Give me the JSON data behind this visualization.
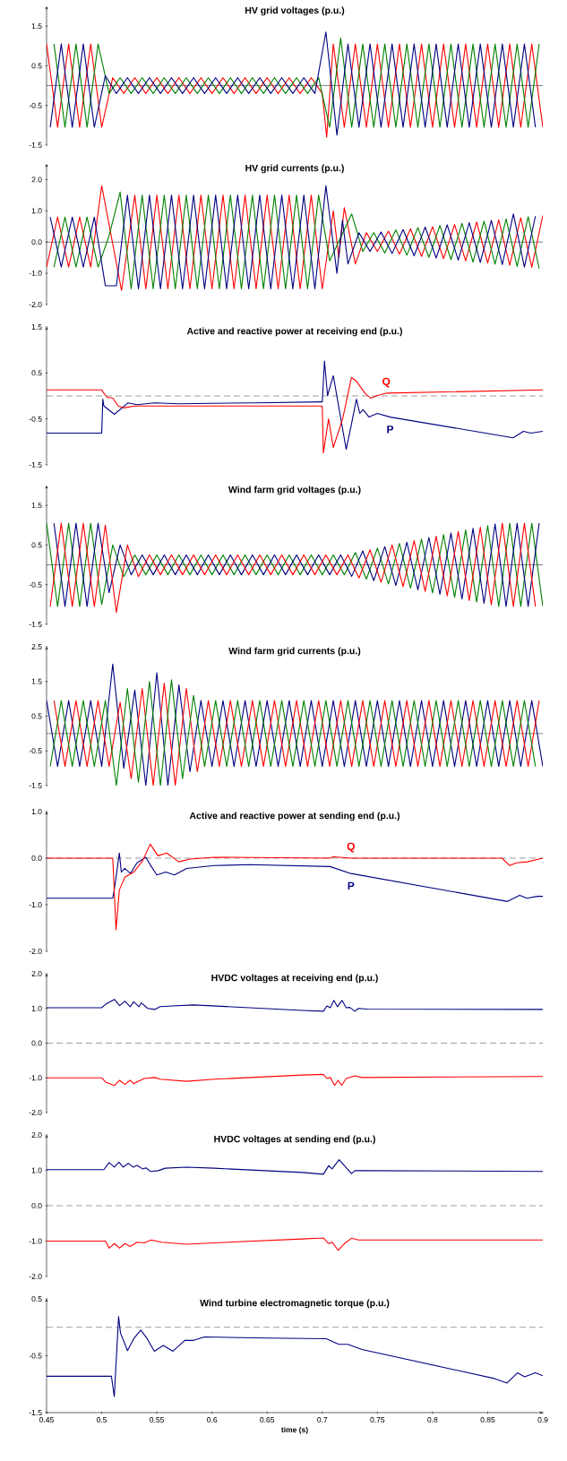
{
  "chart_data": [
    {
      "type": "line",
      "title": "HV grid voltages (p.u.)",
      "xlim": [
        0.45,
        0.9
      ],
      "ylim": [
        -1.5,
        2
      ],
      "yticks": [
        -1.5,
        -0.5,
        0.5,
        1.5
      ],
      "tick_labels": "y",
      "ref_lines": [
        {
          "axis": "y",
          "value": 0,
          "line_style": "solid",
          "color": "#000000"
        }
      ],
      "series": [
        {
          "color": "#ff0000",
          "x": [
            0.45,
            0.46,
            0.47,
            0.48,
            0.49,
            0.5,
            0.51,
            0.52,
            0.53,
            0.54,
            0.55,
            0.56,
            0.57,
            0.58,
            0.59,
            0.6,
            0.61,
            0.62,
            0.63,
            0.64,
            0.65,
            0.66,
            0.67,
            0.68,
            0.69,
            0.7,
            0.704,
            0.71,
            0.72,
            0.73,
            0.74,
            0.75,
            0.76,
            0.77,
            0.78,
            0.79,
            0.8,
            0.81,
            0.82,
            0.83,
            0.84,
            0.85,
            0.86,
            0.87,
            0.88,
            0.89,
            0.9
          ],
          "values": [
            1.05,
            -1.05,
            1.05,
            -1.05,
            1.05,
            -1.05,
            0.2,
            -0.2,
            0.2,
            -0.2,
            0.2,
            -0.2,
            0.2,
            -0.2,
            0.2,
            -0.2,
            0.2,
            -0.2,
            0.2,
            -0.2,
            0.2,
            -0.2,
            0.2,
            -0.2,
            0.2,
            -0.2,
            -1.3,
            1.05,
            -1.05,
            1.05,
            -1.05,
            1.05,
            -1.05,
            1.05,
            -1.05,
            1.05,
            -1.05,
            1.05,
            -1.05,
            1.05,
            -1.05,
            1.05,
            -1.05,
            1.05,
            -1.05,
            1.05,
            -1.05
          ]
        },
        {
          "color": "#008000",
          "x": [
            0.4567,
            0.4667,
            0.4767,
            0.4867,
            0.4967,
            0.5067,
            0.5167,
            0.5267,
            0.5367,
            0.5467,
            0.5567,
            0.5667,
            0.5767,
            0.5867,
            0.5967,
            0.6067,
            0.6167,
            0.6267,
            0.6367,
            0.6467,
            0.6567,
            0.6667,
            0.6767,
            0.6867,
            0.6967,
            0.7067,
            0.7167,
            0.7267,
            0.7367,
            0.7467,
            0.7567,
            0.7667,
            0.7767,
            0.7867,
            0.7967,
            0.8067,
            0.8167,
            0.8267,
            0.8367,
            0.8467,
            0.8567,
            0.8667,
            0.8767,
            0.8867,
            0.8967
          ],
          "values": [
            1.05,
            -1.05,
            1.05,
            -1.05,
            1.05,
            -0.2,
            0.2,
            -0.2,
            0.2,
            -0.2,
            0.2,
            -0.2,
            0.2,
            -0.2,
            0.2,
            -0.2,
            0.2,
            -0.2,
            0.2,
            -0.2,
            0.2,
            -0.2,
            0.2,
            -0.2,
            0.2,
            -1.05,
            1.2,
            -1.05,
            1.05,
            -1.05,
            1.05,
            -1.05,
            1.05,
            -1.05,
            1.05,
            -1.05,
            1.05,
            -1.05,
            1.05,
            -1.05,
            1.05,
            -1.05,
            1.05,
            -1.05,
            1.05
          ]
        },
        {
          "color": "#000080",
          "x": [
            0.4533,
            0.4633,
            0.4733,
            0.4833,
            0.4933,
            0.5033,
            0.5133,
            0.5233,
            0.5333,
            0.5433,
            0.5533,
            0.5633,
            0.5733,
            0.5833,
            0.5933,
            0.6033,
            0.6133,
            0.6233,
            0.6333,
            0.6433,
            0.6533,
            0.6633,
            0.6733,
            0.6833,
            0.6933,
            0.7033,
            0.7133,
            0.7233,
            0.7333,
            0.7433,
            0.7533,
            0.7633,
            0.7733,
            0.7833,
            0.7933,
            0.8033,
            0.8133,
            0.8233,
            0.8333,
            0.8433,
            0.8533,
            0.8633,
            0.8733,
            0.8833,
            0.8933
          ],
          "values": [
            -1.05,
            1.05,
            -1.05,
            1.05,
            -1.05,
            0.25,
            -0.2,
            0.2,
            -0.2,
            0.2,
            -0.2,
            0.2,
            -0.2,
            0.2,
            -0.2,
            0.2,
            -0.2,
            0.2,
            -0.2,
            0.2,
            -0.2,
            0.2,
            -0.2,
            0.2,
            -0.2,
            1.35,
            -1.25,
            1.05,
            -1.05,
            1.05,
            -1.05,
            1.05,
            -1.05,
            1.05,
            -1.05,
            1.05,
            -1.05,
            1.05,
            -1.05,
            1.05,
            -1.05,
            1.05,
            -1.05,
            1.05,
            -1.05
          ]
        }
      ]
    },
    {
      "type": "line",
      "title": "HV grid currents (p.u.)",
      "xlim": [
        0.45,
        0.9
      ],
      "ylim": [
        -2,
        2.5
      ],
      "yticks": [
        {
          "value": -2,
          "label": "-2.0"
        },
        {
          "value": -1,
          "label": "-1.0"
        },
        {
          "value": 0,
          "label": "0.0"
        },
        {
          "value": 1,
          "label": "1.0"
        },
        {
          "value": 2,
          "label": "2.0"
        }
      ],
      "tick_labels": "y",
      "ref_lines": [
        {
          "axis": "y",
          "value": 0,
          "line_style": "solid",
          "color": "#000000"
        }
      ],
      "series": [
        {
          "color": "#ff0000",
          "x": [
            0.45,
            0.46,
            0.47,
            0.48,
            0.49,
            0.5,
            0.518,
            0.53,
            0.54,
            0.55,
            0.56,
            0.57,
            0.58,
            0.59,
            0.6,
            0.61,
            0.62,
            0.63,
            0.64,
            0.65,
            0.66,
            0.67,
            0.68,
            0.69,
            0.7,
            0.71,
            0.715,
            0.72,
            0.73,
            0.74,
            0.75,
            0.76,
            0.77,
            0.78,
            0.79,
            0.8,
            0.81,
            0.82,
            0.83,
            0.84,
            0.85,
            0.86,
            0.87,
            0.88,
            0.89,
            0.9
          ],
          "values": [
            -0.8,
            0.8,
            -0.8,
            0.8,
            -0.8,
            1.8,
            -1.55,
            1.5,
            -1.5,
            1.5,
            -1.5,
            1.5,
            -1.5,
            1.5,
            -1.5,
            1.5,
            -1.5,
            1.5,
            -1.5,
            1.5,
            -1.5,
            1.5,
            -1.5,
            1.5,
            -1.5,
            1.0,
            -0.5,
            1.1,
            -0.7,
            0.3,
            -0.3,
            0.35,
            -0.39,
            0.42,
            -0.46,
            0.49,
            -0.53,
            0.56,
            -0.6,
            0.64,
            -0.67,
            0.71,
            -0.74,
            0.78,
            -0.81,
            0.85
          ]
        },
        {
          "color": "#008000",
          "x": [
            0.4567,
            0.4667,
            0.4767,
            0.4867,
            0.4967,
            0.5067,
            0.5167,
            0.5267,
            0.5367,
            0.5467,
            0.5567,
            0.5667,
            0.5767,
            0.5867,
            0.5967,
            0.6067,
            0.6167,
            0.6267,
            0.6367,
            0.6467,
            0.6567,
            0.6667,
            0.6767,
            0.6867,
            0.6967,
            0.7067,
            0.7267,
            0.7367,
            0.7467,
            0.7567,
            0.7667,
            0.7767,
            0.7867,
            0.7967,
            0.8067,
            0.8167,
            0.8267,
            0.8367,
            0.8467,
            0.8567,
            0.8667,
            0.8767,
            0.8867,
            0.8967
          ],
          "values": [
            -0.8,
            0.8,
            -0.8,
            0.8,
            -0.8,
            0.2,
            1.6,
            -1.5,
            1.5,
            -1.5,
            1.5,
            -1.5,
            1.5,
            -1.5,
            1.5,
            -1.5,
            1.5,
            -1.5,
            1.5,
            -1.5,
            1.5,
            -1.5,
            1.5,
            -1.5,
            1.5,
            -0.6,
            0.9,
            -0.3,
            0.3,
            -0.35,
            0.39,
            -0.42,
            0.46,
            -0.49,
            0.53,
            -0.56,
            0.6,
            -0.64,
            0.67,
            -0.71,
            0.74,
            -0.78,
            0.81,
            -0.85
          ]
        },
        {
          "color": "#000080",
          "x": [
            0.4533,
            0.4633,
            0.4733,
            0.4833,
            0.4933,
            0.5033,
            0.5133,
            0.5233,
            0.5333,
            0.5433,
            0.5533,
            0.5633,
            0.5733,
            0.5833,
            0.5933,
            0.6033,
            0.6133,
            0.6233,
            0.6333,
            0.6433,
            0.6533,
            0.6633,
            0.6733,
            0.6833,
            0.6933,
            0.7033,
            0.7133,
            0.7183,
            0.7233,
            0.7333,
            0.7433,
            0.7533,
            0.7633,
            0.7733,
            0.7833,
            0.7933,
            0.8033,
            0.8133,
            0.8233,
            0.8333,
            0.8433,
            0.8533,
            0.8633,
            0.8733,
            0.8833,
            0.8933
          ],
          "values": [
            0.8,
            -0.8,
            0.8,
            -0.8,
            0.8,
            -1.4,
            -1.4,
            1.5,
            -1.5,
            1.5,
            -1.5,
            1.5,
            -1.5,
            1.5,
            -1.5,
            1.5,
            -1.5,
            1.5,
            -1.5,
            1.5,
            -1.5,
            1.5,
            -1.5,
            1.5,
            -1.5,
            1.8,
            -1.0,
            0.7,
            -0.7,
            0.3,
            -0.3,
            0.32,
            -0.37,
            0.4,
            -0.44,
            0.48,
            -0.51,
            0.55,
            -0.58,
            0.62,
            -0.65,
            0.69,
            -0.72,
            0.9,
            -0.8,
            0.83
          ]
        }
      ]
    },
    {
      "type": "line",
      "title": "Active and reactive power at receiving end (p.u.)",
      "xlim": [
        0.45,
        0.9
      ],
      "ylim": [
        -1.5,
        1.5
      ],
      "yticks": [
        -1.5,
        -0.5,
        0.5,
        1.5
      ],
      "tick_labels": "y",
      "ref_lines": [
        {
          "axis": "y",
          "value": 0,
          "line_style": "dashed",
          "color": "#404040"
        }
      ],
      "series": [
        {
          "name": "P",
          "color": "#000080",
          "x": [
            0.45,
            0.5,
            0.501,
            0.502,
            0.5115,
            0.524,
            0.532,
            0.548,
            0.57,
            0.64,
            0.699,
            0.7,
            0.702,
            0.7048,
            0.71,
            0.7217,
            0.7265,
            0.731,
            0.734,
            0.737,
            0.7424,
            0.75,
            0.7615,
            0.873,
            0.8825,
            0.889,
            0.9
          ],
          "values": [
            -0.81,
            -0.81,
            -0.07,
            -0.22,
            -0.4,
            -0.15,
            -0.19,
            -0.15,
            -0.17,
            -0.15,
            -0.13,
            -0.13,
            0.76,
            0.01,
            0.44,
            -1.16,
            -0.61,
            -0.07,
            -0.38,
            -0.3,
            -0.46,
            -0.38,
            -0.46,
            -0.91,
            -0.77,
            -0.81,
            -0.77
          ]
        },
        {
          "name": "Q",
          "color": "#ff0000",
          "x": [
            0.45,
            0.5,
            0.501,
            0.505,
            0.51,
            0.515,
            0.52,
            0.53,
            0.7,
            0.701,
            0.7057,
            0.71,
            0.7185,
            0.7265,
            0.731,
            0.739,
            0.744,
            0.75,
            0.758,
            0.9
          ],
          "values": [
            0.13,
            0.13,
            0.09,
            -0.03,
            -0.05,
            -0.22,
            -0.26,
            -0.22,
            -0.22,
            -1.24,
            -0.5,
            -1.12,
            -0.5,
            0.4,
            0.32,
            0.05,
            -0.05,
            0.01,
            0.06,
            0.13
          ]
        }
      ]
    },
    {
      "type": "line",
      "title": "Wind farm grid voltages (p.u.)",
      "xlim": [
        0.45,
        0.9
      ],
      "ylim": [
        -1.5,
        2
      ],
      "yticks": [
        -1.5,
        -0.5,
        0.5,
        1.5
      ],
      "tick_labels": "y",
      "ref_lines": [
        {
          "axis": "y",
          "value": 0,
          "line_style": "solid",
          "color": "#000000"
        }
      ],
      "series": [
        {
          "color": "#008000",
          "x": [
            0.45,
            0.46,
            0.47,
            0.48,
            0.49,
            0.5,
            0.51,
            0.52,
            0.53,
            0.54,
            0.55,
            0.56,
            0.57,
            0.58,
            0.59,
            0.6,
            0.61,
            0.62,
            0.63,
            0.64,
            0.65,
            0.66,
            0.67,
            0.68,
            0.69,
            0.7,
            0.71,
            0.72,
            0.73,
            0.74,
            0.75,
            0.76,
            0.77,
            0.78,
            0.79,
            0.8,
            0.81,
            0.82,
            0.83,
            0.84,
            0.85,
            0.86,
            0.87,
            0.88,
            0.89,
            0.9
          ],
          "values": [
            1.05,
            -1.05,
            1.05,
            -1.05,
            1.05,
            -1.0,
            0.5,
            -0.3,
            0.25,
            -0.25,
            0.25,
            -0.25,
            0.25,
            -0.25,
            0.25,
            -0.25,
            0.25,
            -0.25,
            0.25,
            -0.25,
            0.25,
            -0.25,
            0.25,
            -0.25,
            0.25,
            -0.25,
            0.25,
            -0.25,
            0.31,
            -0.36,
            0.42,
            -0.48,
            0.54,
            -0.59,
            0.65,
            -0.71,
            0.76,
            -0.82,
            0.88,
            -0.94,
            0.99,
            -1.05,
            1.05,
            -1.05,
            1.05,
            -1.05
          ]
        },
        {
          "color": "#000080",
          "x": [
            0.4567,
            0.4667,
            0.4767,
            0.4867,
            0.4967,
            0.5067,
            0.5167,
            0.5267,
            0.5367,
            0.5467,
            0.5567,
            0.5667,
            0.5767,
            0.5867,
            0.5967,
            0.6067,
            0.6167,
            0.6267,
            0.6367,
            0.6467,
            0.6567,
            0.6667,
            0.6767,
            0.6867,
            0.6967,
            0.7067,
            0.7167,
            0.7267,
            0.7367,
            0.7467,
            0.7567,
            0.7667,
            0.7767,
            0.7867,
            0.7967,
            0.8067,
            0.8167,
            0.8267,
            0.8367,
            0.8467,
            0.8567,
            0.8667,
            0.8767,
            0.8867,
            0.8967
          ],
          "values": [
            1.05,
            -1.05,
            1.05,
            -1.05,
            1.05,
            -0.7,
            0.5,
            -0.25,
            0.25,
            -0.25,
            0.25,
            -0.25,
            0.25,
            -0.25,
            0.25,
            -0.25,
            0.25,
            -0.25,
            0.25,
            -0.25,
            0.25,
            -0.25,
            0.25,
            -0.25,
            0.25,
            -0.25,
            0.25,
            -0.29,
            0.35,
            -0.4,
            0.46,
            -0.52,
            0.57,
            -0.63,
            0.69,
            -0.74,
            0.8,
            -0.86,
            0.92,
            -0.97,
            1.03,
            -1.05,
            1.05,
            -1.05,
            1.05
          ]
        },
        {
          "color": "#ff0000",
          "x": [
            0.4533,
            0.4633,
            0.4733,
            0.4833,
            0.4933,
            0.5033,
            0.5133,
            0.5233,
            0.5333,
            0.5433,
            0.5533,
            0.5633,
            0.5733,
            0.5833,
            0.5933,
            0.6033,
            0.6133,
            0.6233,
            0.6333,
            0.6433,
            0.6533,
            0.6633,
            0.6733,
            0.6833,
            0.6933,
            0.7033,
            0.7133,
            0.7233,
            0.7333,
            0.7433,
            0.7533,
            0.7633,
            0.7733,
            0.7833,
            0.7933,
            0.8033,
            0.8133,
            0.8233,
            0.8333,
            0.8433,
            0.8533,
            0.8633,
            0.8733,
            0.8833,
            0.8933
          ],
          "values": [
            -1.05,
            1.05,
            -1.05,
            1.05,
            -1.05,
            1.0,
            -1.2,
            0.5,
            -0.3,
            0.25,
            -0.25,
            0.25,
            -0.25,
            0.25,
            -0.25,
            0.25,
            -0.25,
            0.25,
            -0.25,
            0.25,
            -0.25,
            0.25,
            -0.25,
            0.25,
            -0.25,
            0.25,
            -0.25,
            0.25,
            -0.33,
            0.38,
            -0.44,
            0.5,
            -0.55,
            0.61,
            -0.67,
            0.72,
            -0.78,
            0.84,
            -0.9,
            0.95,
            -1.01,
            1.05,
            -1.05,
            1.05,
            -1.05
          ]
        }
      ]
    },
    {
      "type": "line",
      "title": "Wind farm grid currents (p.u.)",
      "xlim": [
        0.45,
        0.9
      ],
      "ylim": [
        -1.5,
        2.5
      ],
      "yticks": [
        -1.5,
        -0.5,
        0.5,
        1.5,
        2.5
      ],
      "tick_labels": "y",
      "ref_lines": [
        {
          "axis": "y",
          "value": 0,
          "line_style": "solid",
          "color": "#000000"
        }
      ],
      "series": [
        {
          "color": "#000080",
          "x": [
            0.45,
            0.46,
            0.47,
            0.48,
            0.49,
            0.5,
            0.51,
            0.52,
            0.53,
            0.54,
            0.55,
            0.56,
            0.57,
            0.58,
            0.59,
            0.6,
            0.61,
            0.62,
            0.63,
            0.64,
            0.65,
            0.66,
            0.67,
            0.68,
            0.69,
            0.7,
            0.71,
            0.72,
            0.73,
            0.74,
            0.75,
            0.76,
            0.77,
            0.78,
            0.79,
            0.8,
            0.81,
            0.82,
            0.83,
            0.84,
            0.85,
            0.86,
            0.87,
            0.88,
            0.89,
            0.9
          ],
          "values": [
            0.95,
            -0.95,
            0.95,
            -0.95,
            0.95,
            -0.95,
            2.0,
            -1.0,
            1.25,
            -1.5,
            1.75,
            -1.5,
            1.4,
            -1.1,
            0.95,
            -0.95,
            0.95,
            -0.95,
            0.95,
            -0.95,
            0.95,
            -0.95,
            0.95,
            -0.95,
            0.95,
            -0.95,
            0.95,
            -0.95,
            0.95,
            -0.95,
            0.95,
            -0.95,
            0.95,
            -0.95,
            0.95,
            -0.95,
            0.95,
            -0.95,
            0.95,
            -0.95,
            0.95,
            -0.95,
            0.95,
            -0.95,
            0.95,
            -0.95
          ]
        },
        {
          "color": "#ff0000",
          "x": [
            0.4567,
            0.4667,
            0.4767,
            0.4867,
            0.4967,
            0.5067,
            0.5167,
            0.5267,
            0.5367,
            0.5467,
            0.5567,
            0.5667,
            0.5767,
            0.5867,
            0.5967,
            0.6067,
            0.6167,
            0.6267,
            0.6367,
            0.6467,
            0.6567,
            0.6667,
            0.6767,
            0.6867,
            0.6967,
            0.7067,
            0.7167,
            0.7267,
            0.7367,
            0.7467,
            0.7567,
            0.7667,
            0.7767,
            0.7867,
            0.7967,
            0.8067,
            0.8167,
            0.8267,
            0.8367,
            0.8467,
            0.8567,
            0.8667,
            0.8767,
            0.8867,
            0.8967
          ],
          "values": [
            0.95,
            -0.95,
            0.95,
            -0.95,
            0.95,
            -0.95,
            0.9,
            -1.3,
            1.3,
            -1.5,
            1.45,
            -1.5,
            1.3,
            -1.1,
            0.95,
            -0.95,
            0.95,
            -0.95,
            0.95,
            -0.95,
            0.95,
            -0.95,
            0.95,
            -0.95,
            0.95,
            -0.95,
            0.95,
            -0.95,
            0.95,
            -0.95,
            0.95,
            -0.95,
            0.95,
            -0.95,
            0.95,
            -0.95,
            0.95,
            -0.95,
            0.95,
            -0.95,
            0.95,
            -0.95,
            0.95,
            -0.95,
            0.95
          ]
        },
        {
          "color": "#008000",
          "x": [
            0.4533,
            0.4633,
            0.4733,
            0.4833,
            0.4933,
            0.5033,
            0.5133,
            0.5233,
            0.5333,
            0.5433,
            0.5533,
            0.5633,
            0.5733,
            0.5833,
            0.5933,
            0.6033,
            0.6133,
            0.6233,
            0.6333,
            0.6433,
            0.6533,
            0.6633,
            0.6733,
            0.6833,
            0.6933,
            0.7033,
            0.7133,
            0.7233,
            0.7333,
            0.7433,
            0.7533,
            0.7633,
            0.7733,
            0.7833,
            0.7933,
            0.8033,
            0.8133,
            0.8233,
            0.8333,
            0.8433,
            0.8533,
            0.8633,
            0.8733,
            0.8833,
            0.8933
          ],
          "values": [
            -0.95,
            0.95,
            -0.95,
            0.95,
            -0.95,
            0.95,
            -1.5,
            1.3,
            -1.4,
            1.5,
            -1.5,
            1.55,
            -1.3,
            1.1,
            -0.95,
            0.95,
            -0.95,
            0.95,
            -0.95,
            0.95,
            -0.95,
            0.95,
            -0.95,
            0.95,
            -0.95,
            0.95,
            -0.95,
            0.95,
            -0.95,
            0.95,
            -0.95,
            0.95,
            -0.95,
            0.95,
            -0.95,
            0.95,
            -0.95,
            0.95,
            -0.95,
            0.95,
            -0.95,
            0.95,
            -0.95,
            0.95,
            -0.95
          ]
        }
      ]
    },
    {
      "type": "line",
      "title": "Active and reactive power at sending end (p.u.)",
      "xlim": [
        0.45,
        0.9
      ],
      "ylim": [
        -2,
        1
      ],
      "yticks": [
        {
          "value": -2,
          "label": "-2.0"
        },
        {
          "value": -1,
          "label": "-1.0"
        },
        {
          "value": 0,
          "label": "0.0"
        },
        {
          "value": 1,
          "label": "1.0"
        }
      ],
      "tick_labels": "y",
      "ref_lines": [
        {
          "axis": "y",
          "value": 0,
          "line_style": "dashed",
          "color": "#404040"
        }
      ],
      "series": [
        {
          "name": "P",
          "color": "#000080",
          "x": [
            0.45,
            0.51,
            0.5114,
            0.516,
            0.5178,
            0.521,
            0.526,
            0.532,
            0.54,
            0.545,
            0.55,
            0.558,
            0.566,
            0.577,
            0.602,
            0.634,
            0.707,
            0.726,
            0.868,
            0.879,
            0.8857,
            0.895,
            0.9
          ],
          "values": [
            -0.86,
            -0.86,
            -0.68,
            0.11,
            -0.3,
            -0.22,
            -0.33,
            -0.1,
            0.02,
            -0.18,
            -0.36,
            -0.3,
            -0.36,
            -0.22,
            -0.16,
            -0.14,
            -0.18,
            -0.33,
            -0.93,
            -0.8,
            -0.86,
            -0.82,
            -0.82
          ]
        },
        {
          "name": "Q",
          "color": "#ff0000",
          "x": [
            0.45,
            0.51,
            0.513,
            0.516,
            0.521,
            0.529,
            0.537,
            0.544,
            0.551,
            0.559,
            0.57,
            0.58,
            0.602,
            0.707,
            0.71,
            0.726,
            0.863,
            0.87,
            0.876,
            0.886,
            0.9
          ],
          "values": [
            0,
            0,
            -1.54,
            -0.68,
            -0.41,
            -0.3,
            -0.06,
            0.3,
            0.05,
            0.11,
            -0.08,
            -0.02,
            0.02,
            0,
            0.03,
            0,
            0,
            -0.16,
            -0.1,
            -0.08,
            0
          ]
        }
      ]
    },
    {
      "type": "line",
      "title": "HVDC voltages at receiving end (p.u.)",
      "xlim": [
        0.45,
        0.9
      ],
      "ylim": [
        -2,
        2
      ],
      "yticks": [
        {
          "value": -2,
          "label": "-2.0"
        },
        {
          "value": -1,
          "label": "-1.0"
        },
        {
          "value": 0,
          "label": "0.0"
        },
        {
          "value": 1,
          "label": "1.0"
        },
        {
          "value": 2,
          "label": "2.0"
        }
      ],
      "tick_labels": "y",
      "ref_lines": [
        {
          "axis": "y",
          "value": 0,
          "line_style": "dashed",
          "color": "#404040"
        }
      ],
      "series": [
        {
          "color": "#000080",
          "x": [
            0.45,
            0.5,
            0.5035,
            0.5115,
            0.5162,
            0.521,
            0.5258,
            0.529,
            0.5338,
            0.536,
            0.5417,
            0.5481,
            0.5529,
            0.564,
            0.5831,
            0.6086,
            0.6819,
            0.701,
            0.7042,
            0.7073,
            0.7105,
            0.7137,
            0.7179,
            0.7217,
            0.7249,
            0.7296,
            0.7328,
            0.7408,
            0.9
          ],
          "values": [
            1.02,
            1.02,
            1.12,
            1.26,
            1.08,
            1.21,
            1.05,
            1.19,
            1.05,
            1.16,
            1.0,
            0.97,
            1.05,
            1.07,
            1.1,
            1.06,
            0.94,
            0.92,
            1.07,
            1.02,
            1.23,
            1.05,
            1.23,
            1.02,
            1.03,
            0.92,
            1.0,
            0.98,
            0.97
          ]
        },
        {
          "color": "#ff0000",
          "x": [
            0.45,
            0.5,
            0.5035,
            0.5115,
            0.5162,
            0.521,
            0.5258,
            0.529,
            0.5338,
            0.5385,
            0.5481,
            0.5529,
            0.5768,
            0.6022,
            0.6819,
            0.701,
            0.7042,
            0.7073,
            0.7112,
            0.7144,
            0.7175,
            0.7217,
            0.7296,
            0.736,
            0.9
          ],
          "values": [
            -1.0,
            -1.0,
            -1.12,
            -1.22,
            -1.07,
            -1.19,
            -1.07,
            -1.17,
            -1.09,
            -1.02,
            -0.99,
            -1.04,
            -1.1,
            -1.04,
            -0.92,
            -0.9,
            -1.02,
            -0.99,
            -1.22,
            -1.07,
            -1.22,
            -1.02,
            -0.94,
            -0.99,
            -0.96
          ]
        }
      ]
    },
    {
      "type": "line",
      "title": "HVDC voltages at sending end (p.u.)",
      "xlim": [
        0.45,
        0.9
      ],
      "ylim": [
        -2,
        2
      ],
      "yticks": [
        {
          "value": -2,
          "label": "-2.0"
        },
        {
          "value": -1,
          "label": "-1.0"
        },
        {
          "value": 0,
          "label": "0.0"
        },
        {
          "value": 1,
          "label": "1.0"
        },
        {
          "value": 2,
          "label": "2.0"
        }
      ],
      "tick_labels": "y",
      "ref_lines": [
        {
          "axis": "y",
          "value": 0,
          "line_style": "dashed",
          "color": "#404040"
        }
      ],
      "series": [
        {
          "color": "#000080",
          "x": [
            0.45,
            0.5019,
            0.5067,
            0.5115,
            0.5156,
            0.5194,
            0.5242,
            0.5284,
            0.5322,
            0.537,
            0.5401,
            0.5443,
            0.5513,
            0.5577,
            0.5768,
            0.6022,
            0.6819,
            0.701,
            0.7058,
            0.7089,
            0.7153,
            0.7201,
            0.7265,
            0.7296,
            0.736,
            0.9
          ],
          "values": [
            1.02,
            1.02,
            1.22,
            1.09,
            1.23,
            1.09,
            1.2,
            1.09,
            1.14,
            1.04,
            1.07,
            0.97,
            0.99,
            1.06,
            1.09,
            1.06,
            0.94,
            0.89,
            1.13,
            1.04,
            1.3,
            1.13,
            0.91,
            0.99,
            0.99,
            0.97
          ]
        },
        {
          "color": "#ff0000",
          "x": [
            0.45,
            0.5035,
            0.5067,
            0.5115,
            0.5162,
            0.521,
            0.5258,
            0.5322,
            0.5385,
            0.5449,
            0.5545,
            0.5768,
            0.6022,
            0.6819,
            0.701,
            0.7058,
            0.7089,
            0.7144,
            0.7201,
            0.7265,
            0.7328,
            0.9
          ],
          "values": [
            -1.0,
            -1.0,
            -1.2,
            -1.07,
            -1.2,
            -1.07,
            -1.15,
            -1.03,
            -1.05,
            -0.97,
            -1.03,
            -1.09,
            -1.05,
            -0.94,
            -0.91,
            -1.07,
            -1.03,
            -1.26,
            -1.07,
            -0.92,
            -0.97,
            -0.97
          ]
        }
      ]
    },
    {
      "type": "line",
      "title": "Wind turbine electromagnetic torque (p.u.)",
      "xlabel": "time (s)",
      "xlim": [
        0.45,
        0.9
      ],
      "xticks": [
        0.45,
        0.5,
        0.55,
        0.6,
        0.65,
        0.7,
        0.75,
        0.8,
        0.85,
        0.9
      ],
      "ylim": [
        -1.5,
        0.5
      ],
      "yticks": [
        -1.5,
        -0.5,
        0.5
      ],
      "ref_lines": [
        {
          "axis": "y",
          "value": 0,
          "line_style": "dashed",
          "color": "#404040"
        }
      ],
      "series": [
        {
          "color": "#000080",
          "x": [
            0.45,
            0.5088,
            0.5114,
            0.5153,
            0.517,
            0.5234,
            0.529,
            0.5354,
            0.5412,
            0.5477,
            0.5558,
            0.5646,
            0.5753,
            0.5834,
            0.5932,
            0.65,
            0.7036,
            0.715,
            0.7231,
            0.736,
            0.856,
            0.8676,
            0.877,
            0.8835,
            0.8932,
            0.9
          ],
          "values": [
            -0.86,
            -0.86,
            -1.22,
            0.19,
            -0.1,
            -0.41,
            -0.2,
            -0.05,
            -0.2,
            -0.42,
            -0.32,
            -0.42,
            -0.23,
            -0.23,
            -0.17,
            -0.19,
            -0.2,
            -0.3,
            -0.3,
            -0.39,
            -0.9,
            -0.98,
            -0.8,
            -0.87,
            -0.8,
            -0.85
          ]
        }
      ]
    }
  ]
}
